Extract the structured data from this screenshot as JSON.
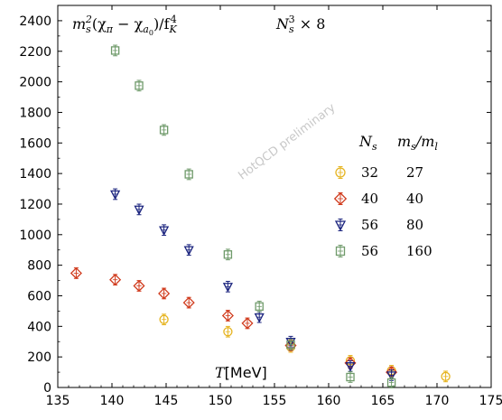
{
  "chart_data": {
    "type": "scatter",
    "title": "m_s^2(χ_π − χ_a0)/f_K^4",
    "title_parts": {
      "m": "m",
      "s_sub": "s",
      "sq": "2",
      "chi_pi": "(χ",
      "pi_sub": "π",
      "minus": " − χ",
      "a_sub": "a",
      "zero_sub": "0",
      "close": ")/f",
      "K_sub": "K",
      "four_sup": "4"
    },
    "lattice_label": {
      "N": "N",
      "s_sub": "s",
      "three_sup": "3",
      "times8": " × 8"
    },
    "watermark": "HotQCD preliminary",
    "xlabel": {
      "T": "T",
      "unit": "[MeV]"
    },
    "ylabel": "",
    "xlim": [
      135,
      175
    ],
    "ylim": [
      0,
      2500
    ],
    "xticks": [
      135,
      140,
      145,
      150,
      155,
      160,
      165,
      170,
      175
    ],
    "yticks": [
      0,
      200,
      400,
      600,
      800,
      1000,
      1200,
      1400,
      1600,
      1800,
      2000,
      2200,
      2400
    ],
    "xtick_labels": [
      "135",
      "140",
      "145",
      "150",
      "155",
      "160",
      "165",
      "170",
      "175"
    ],
    "ytick_labels": [
      "0",
      "200",
      "400",
      "600",
      "800",
      "1000",
      "1200",
      "1400",
      "1600",
      "1800",
      "2000",
      "2200",
      "2400"
    ],
    "legend": {
      "placement": "right",
      "header_Ns": {
        "N": "N",
        "sub": "s"
      },
      "header_ratio": {
        "ms": "m",
        "s_sub": "s",
        "slash": "/m",
        "l_sub": "l"
      }
    },
    "series": [
      {
        "Ns": "32",
        "ratio": "27",
        "color": "#e6b420",
        "marker": "circle",
        "x": [
          144.8,
          150.7,
          156.5,
          162.0,
          165.8,
          170.8
        ],
        "y": [
          445,
          365,
          265,
          175,
          110,
          72
        ]
      },
      {
        "Ns": "40",
        "ratio": "40",
        "color": "#d03a1c",
        "marker": "diamond",
        "x": [
          136.7,
          140.3,
          142.5,
          144.8,
          147.1,
          150.7,
          152.5,
          156.5,
          162.0,
          165.8
        ],
        "y": [
          748,
          705,
          665,
          615,
          555,
          470,
          420,
          275,
          160,
          100
        ]
      },
      {
        "Ns": "56",
        "ratio": "80",
        "color": "#1a237e",
        "marker": "triangle-down",
        "x": [
          140.3,
          142.5,
          144.8,
          147.1,
          150.7,
          153.6,
          156.5,
          162.0,
          165.8
        ],
        "y": [
          1265,
          1165,
          1030,
          900,
          660,
          460,
          300,
          140,
          80
        ]
      },
      {
        "Ns": "56",
        "ratio": "160",
        "color": "#6f9a6a",
        "marker": "square",
        "x": [
          140.3,
          142.5,
          144.8,
          147.1,
          150.7,
          153.6,
          156.5,
          162.0,
          165.8
        ],
        "y": [
          2205,
          1975,
          1685,
          1395,
          870,
          530,
          280,
          68,
          32
        ]
      }
    ]
  }
}
